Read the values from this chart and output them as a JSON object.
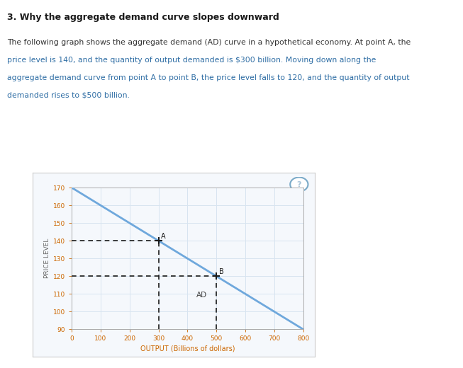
{
  "title_main": "3. Why the aggregate demand curve slopes downward",
  "paragraph_line1": "The following graph shows the aggregate demand (AD) curve in a hypothetical economy. At point A, the",
  "paragraph_line2": "price level is 140, and the quantity of output demanded is $300 billion. Moving down along the",
  "paragraph_line3": "aggregate demand curve from point A to point B, the price level falls to 120, and the quantity of output",
  "paragraph_line4": "demanded rises to $500 billion.",
  "ad_line_x": [
    0,
    800
  ],
  "ad_line_y": [
    170,
    90
  ],
  "point_A": [
    300,
    140
  ],
  "point_B": [
    500,
    120
  ],
  "label_A": "A",
  "label_B": "B",
  "label_AD": "AD",
  "xlabel": "OUTPUT (Billions of dollars)",
  "ylabel": "PRICE LEVEL",
  "xlim": [
    0,
    800
  ],
  "ylim": [
    90,
    170
  ],
  "xticks": [
    0,
    100,
    200,
    300,
    400,
    500,
    600,
    700,
    800
  ],
  "yticks": [
    90,
    100,
    110,
    120,
    130,
    140,
    150,
    160,
    170
  ],
  "ad_line_color": "#6fa8dc",
  "dashed_line_color": "#1a1a1a",
  "point_marker_color": "#1a1a1a",
  "grid_color": "#d8e4f0",
  "background_color": "#ffffff",
  "panel_bg": "#f5f8fc",
  "panel_border": "#cccccc",
  "title_color": "#1a1a1a",
  "paragraph_color_black": "#333333",
  "paragraph_color_blue": "#2e6da4",
  "xlabel_color": "#cc6600",
  "ylabel_color": "#666666",
  "tick_label_color": "#cc6600",
  "ad_label_color": "#444444",
  "separator_color": "#c8a830",
  "qmark_bg": "#a8c4d8",
  "qmark_border": "#7aaac8"
}
